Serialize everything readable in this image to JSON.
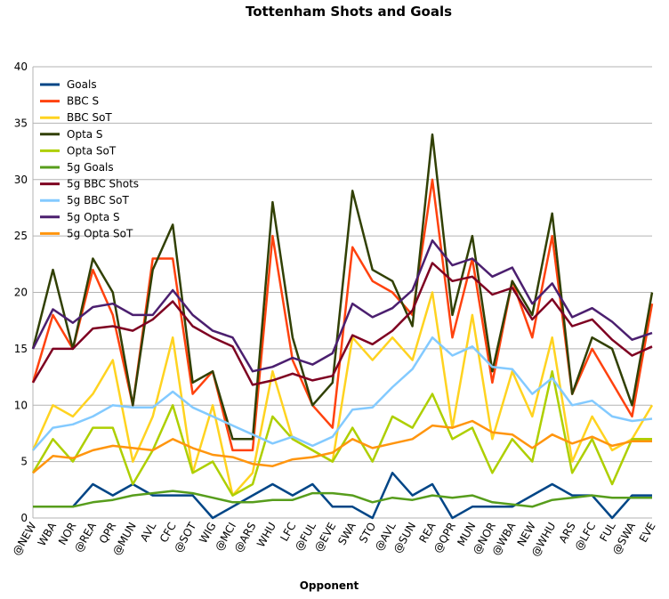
{
  "chart_data": {
    "type": "line",
    "title": "Tottenham Shots and Goals",
    "x_label": "Opponent",
    "categories": [
      "@NEW",
      "WBA",
      "NOR",
      "@REA",
      "QPR",
      "@MUN",
      "AVL",
      "CFC",
      "@SOT",
      "WIG",
      "@MCI",
      "@ARS",
      "WHU",
      "LFC",
      "@FUL",
      "@EVE",
      "SWA",
      "STO",
      "@AVL",
      "@SUN",
      "REA",
      "@QPR",
      "MUN",
      "@NOR",
      "@WBA",
      "NEW",
      "@WHU",
      "ARS",
      "@LFC",
      "FUL",
      "@SWA",
      "EVE"
    ],
    "series": [
      {
        "name": "Goals",
        "color": "#004586",
        "values": [
          1,
          1,
          1,
          3,
          2,
          3,
          2,
          2,
          2,
          0,
          1,
          2,
          3,
          2,
          3,
          1,
          1,
          0,
          4,
          2,
          3,
          0,
          1,
          1,
          1,
          2,
          3,
          2,
          2,
          0,
          2,
          2
        ]
      },
      {
        "name": "BBC S",
        "color": "#ff420e",
        "values": [
          12,
          18,
          15,
          22,
          18,
          10,
          23,
          23,
          11,
          13,
          6,
          6,
          25,
          14,
          10,
          8,
          24,
          21,
          20,
          18,
          30,
          16,
          23,
          12,
          21,
          16,
          25,
          11,
          15,
          12,
          9,
          19
        ]
      },
      {
        "name": "BBC SoT",
        "color": "#ffd320",
        "values": [
          6,
          10,
          9,
          11,
          14,
          5,
          9,
          16,
          4,
          10,
          2,
          4,
          13,
          7,
          6,
          5,
          16,
          14,
          16,
          14,
          20,
          8,
          18,
          7,
          13,
          9,
          16,
          5,
          9,
          6,
          7,
          10
        ]
      },
      {
        "name": "Opta S",
        "color": "#314004",
        "values": [
          15,
          22,
          15,
          23,
          20,
          10,
          22,
          26,
          12,
          13,
          7,
          7,
          28,
          16,
          10,
          12,
          29,
          22,
          21,
          17,
          34,
          18,
          25,
          13,
          21,
          18,
          27,
          11,
          16,
          15,
          10,
          20
        ]
      },
      {
        "name": "Opta SoT",
        "color": "#aecf00",
        "values": [
          4,
          7,
          5,
          8,
          8,
          3,
          6,
          10,
          4,
          5,
          2,
          3,
          9,
          7,
          6,
          5,
          8,
          5,
          9,
          8,
          11,
          7,
          8,
          4,
          7,
          5,
          13,
          4,
          7,
          3,
          7,
          7
        ]
      },
      {
        "name": "5g Goals",
        "color": "#579d1c",
        "values": [
          1,
          1,
          1,
          1.4,
          1.6,
          2,
          2.2,
          2.4,
          2.2,
          1.8,
          1.4,
          1.4,
          1.6,
          1.6,
          2.2,
          2.2,
          2,
          1.4,
          1.8,
          1.6,
          2,
          1.8,
          2,
          1.4,
          1.2,
          1,
          1.6,
          1.8,
          2,
          1.8,
          1.8,
          1.8
        ]
      },
      {
        "name": "5g BBC Shots",
        "color": "#7e0021",
        "values": [
          12,
          15,
          15,
          16.8,
          17,
          16.6,
          17.6,
          19.2,
          17,
          16,
          15.2,
          11.8,
          12.2,
          12.8,
          12.2,
          12.6,
          16.2,
          15.4,
          16.6,
          18.4,
          22.6,
          21,
          21.4,
          19.8,
          20.4,
          17.6,
          19.4,
          17,
          17.6,
          15.8,
          14.4,
          15.2
        ]
      },
      {
        "name": "5g BBC SoT",
        "color": "#83caff",
        "values": [
          6,
          8,
          8.3,
          9,
          10,
          9.8,
          9.8,
          11.2,
          9.8,
          9,
          8.2,
          7.4,
          6.6,
          7.2,
          6.4,
          7.2,
          9.6,
          9.8,
          11.6,
          13.2,
          16,
          14.4,
          15.2,
          13.4,
          13.2,
          11,
          12.4,
          10,
          10.4,
          9,
          8.6,
          8.8
        ]
      },
      {
        "name": "5g Opta S",
        "color": "#4b1f6f",
        "values": [
          15,
          18.5,
          17.3,
          18.7,
          19,
          18,
          18,
          20.2,
          18,
          16.6,
          16,
          13,
          13.4,
          14.2,
          13.6,
          14.6,
          19,
          17.8,
          18.6,
          20.2,
          24.6,
          22.4,
          23,
          21.4,
          22.2,
          19,
          20.8,
          17.8,
          18.6,
          17.4,
          15.8,
          16.4
        ]
      },
      {
        "name": "5g Opta SoT",
        "color": "#ff950e",
        "values": [
          4,
          5.5,
          5.3,
          6,
          6.4,
          6.2,
          6,
          7,
          6.2,
          5.6,
          5.4,
          4.8,
          4.6,
          5.2,
          5.4,
          5.8,
          7,
          6.2,
          6.6,
          7,
          8.2,
          8,
          8.6,
          7.6,
          7.4,
          6.2,
          7.4,
          6.6,
          7.2,
          6.4,
          6.8,
          6.8
        ]
      }
    ],
    "ylim": [
      0,
      40
    ],
    "yticks": [
      0,
      5,
      10,
      15,
      20,
      25,
      30,
      35,
      40
    ],
    "grid": true,
    "legend": "upper-left"
  }
}
